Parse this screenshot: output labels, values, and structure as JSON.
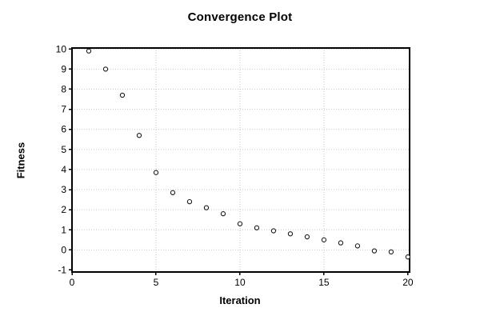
{
  "chart_data": {
    "type": "scatter",
    "title": "Convergence Plot",
    "xlabel": "Iteration",
    "ylabel": "Fitness",
    "series": [
      {
        "name": "fitness",
        "x": [
          1,
          2,
          3,
          4,
          5,
          6,
          7,
          8,
          9,
          10,
          11,
          12,
          13,
          14,
          15,
          16,
          17,
          18,
          19,
          20
        ],
        "y": [
          9.9,
          9.0,
          7.7,
          5.7,
          3.85,
          2.85,
          2.4,
          2.1,
          1.8,
          1.3,
          1.1,
          0.95,
          0.8,
          0.65,
          0.5,
          0.35,
          0.2,
          -0.05,
          -0.1,
          -0.35
        ]
      }
    ],
    "xlim": [
      0,
      20.1
    ],
    "ylim": [
      -1.1,
      10.05
    ],
    "xticks": [
      0,
      5,
      10,
      15,
      20
    ],
    "yticks": [
      -1,
      0,
      1,
      2,
      3,
      4,
      5,
      6,
      7,
      8,
      9,
      10
    ],
    "grid": true,
    "legend": "none",
    "marker": "open-circle",
    "colors": {
      "background": "#ffffff",
      "axis": "#000000",
      "grid": "#c9c9c9",
      "text": "#000000",
      "marker_stroke": "#1a1a1a",
      "marker_fill": "#ffffff"
    }
  }
}
